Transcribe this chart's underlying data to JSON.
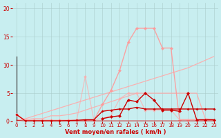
{
  "background_color": "#c8eef0",
  "grid_color": "#aacccc",
  "xlabel": "Vent moyen/en rafales ( km/h )",
  "xlabel_color": "#cc0000",
  "xlim": [
    -0.5,
    23.5
  ],
  "ylim": [
    0,
    21
  ],
  "xticks": [
    0,
    1,
    2,
    3,
    4,
    5,
    6,
    7,
    8,
    9,
    10,
    11,
    12,
    13,
    14,
    15,
    16,
    17,
    18,
    19,
    20,
    21,
    22,
    23
  ],
  "yticks": [
    0,
    5,
    10,
    15,
    20
  ],
  "lines": [
    {
      "x": [
        0,
        20,
        23
      ],
      "y": [
        0,
        9.5,
        11.5
      ],
      "color": "#ffaaaa",
      "lw": 0.9,
      "marker": null,
      "alpha": 0.9
    },
    {
      "x": [
        0,
        1,
        2,
        3,
        4,
        5,
        6,
        7,
        8,
        9,
        10,
        11,
        12,
        13,
        14,
        15,
        16,
        17,
        18,
        19,
        20,
        21,
        22,
        23
      ],
      "y": [
        0.3,
        0.3,
        0.5,
        0.5,
        1.0,
        1.0,
        1.2,
        1.5,
        2.0,
        2.5,
        3.0,
        3.5,
        4.0,
        4.5,
        5.0,
        5.0,
        5.0,
        5.0,
        5.0,
        5.0,
        5.0,
        5.0,
        0.5,
        0.3
      ],
      "color": "#ffaaaa",
      "lw": 0.9,
      "marker": null,
      "alpha": 0.9
    },
    {
      "x": [
        0,
        0
      ],
      "y": [
        0,
        11.5
      ],
      "color": "#555555",
      "lw": 1.0,
      "marker": null,
      "alpha": 1.0
    },
    {
      "x": [
        0,
        1,
        2,
        3,
        4,
        5,
        6,
        7,
        8,
        9,
        10,
        11,
        12,
        13,
        14,
        15,
        16,
        17,
        18,
        19,
        20,
        21,
        22
      ],
      "y": [
        1.2,
        0.2,
        0.2,
        0.2,
        0.2,
        0.2,
        0.2,
        0.2,
        0.2,
        0.2,
        3.0,
        5.5,
        9.0,
        14.0,
        16.5,
        16.5,
        16.5,
        13.0,
        13.0,
        0.3,
        0.3,
        0.3,
        0.2
      ],
      "color": "#ff9999",
      "lw": 1.0,
      "marker": "D",
      "markersize": 2.5,
      "alpha": 0.9
    },
    {
      "x": [
        0,
        1,
        2,
        3,
        4,
        5,
        6,
        7,
        8,
        9,
        10,
        11,
        12,
        13,
        14,
        15,
        16,
        17,
        18,
        19,
        20,
        21,
        22,
        23
      ],
      "y": [
        1.2,
        0.2,
        0.2,
        0.2,
        0.2,
        0.2,
        0.2,
        0.2,
        8.0,
        0.3,
        0.5,
        1.0,
        4.0,
        5.0,
        5.0,
        2.0,
        2.0,
        2.0,
        2.0,
        0.3,
        0.3,
        0.3,
        0.2,
        0.2
      ],
      "color": "#ffaaaa",
      "lw": 0.9,
      "marker": "D",
      "markersize": 2.5,
      "alpha": 0.7
    },
    {
      "x": [
        0,
        1,
        2,
        3,
        4,
        5,
        6,
        7,
        8,
        9,
        10,
        11,
        12,
        13,
        14,
        15,
        16,
        17,
        18,
        19,
        20,
        21,
        22,
        23
      ],
      "y": [
        1.2,
        0.1,
        0.1,
        0.1,
        0.1,
        0.1,
        0.15,
        0.2,
        0.3,
        0.3,
        1.8,
        2.0,
        2.2,
        2.2,
        2.5,
        2.2,
        2.2,
        2.2,
        2.2,
        2.2,
        2.2,
        2.2,
        2.2,
        2.2
      ],
      "color": "#cc0000",
      "lw": 1.0,
      "marker": "D",
      "markersize": 2.0,
      "alpha": 1.0
    },
    {
      "x": [
        10,
        11,
        12,
        13,
        14,
        15,
        16,
        17,
        18,
        19,
        20,
        21,
        22,
        23
      ],
      "y": [
        0.5,
        0.8,
        1.0,
        3.8,
        3.5,
        5.0,
        3.8,
        2.0,
        2.0,
        1.8,
        5.0,
        0.3,
        0.3,
        0.3
      ],
      "color": "#cc0000",
      "lw": 1.0,
      "marker": "D",
      "markersize": 2.5,
      "alpha": 1.0
    },
    {
      "x": [
        0,
        1,
        2,
        3,
        4,
        5,
        6,
        7,
        8,
        9,
        10,
        11,
        12,
        13,
        14,
        15,
        16,
        17,
        18,
        19,
        20,
        21,
        22,
        23
      ],
      "y": [
        0.2,
        0.1,
        0.1,
        0.1,
        0.1,
        0.1,
        0.1,
        0.1,
        0.1,
        0.1,
        0.1,
        0.1,
        0.1,
        0.1,
        0.1,
        0.1,
        0.1,
        0.1,
        0.1,
        0.1,
        0.1,
        0.1,
        0.1,
        0.1
      ],
      "color": "#cc0000",
      "lw": 0.8,
      "marker": null,
      "alpha": 0.8
    }
  ]
}
